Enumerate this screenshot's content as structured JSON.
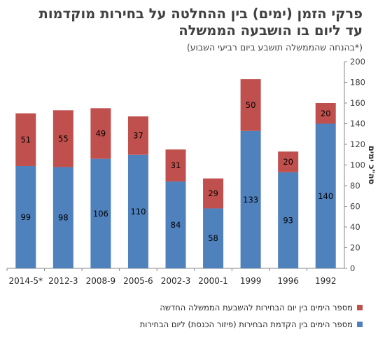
{
  "title_line1": "פרקי הזמן (ימים) בין ההחלטה על בחירות מוקדמות",
  "title_line2": "עד ליום בו הושבעה הממשלה",
  "subtitle": "(*בהנחה שהממשלה תושבע ביום רביעי השבוע)",
  "colors": {
    "red": "#c0504d",
    "blue": "#4f81bd",
    "axis": "#888888"
  },
  "chart_data": {
    "type": "bar",
    "stacked": true,
    "categories": [
      "2014-5*",
      "2012-3",
      "2008-9",
      "2005-6",
      "2002-3",
      "2000-1",
      "1999",
      "1996",
      "1992"
    ],
    "series": [
      {
        "name": "מספר הימים בין הקדמת הבחירות (פיזור הכנסת) ליום הבחירות",
        "color": "#4f81bd",
        "values": [
          99,
          98,
          106,
          110,
          84,
          58,
          133,
          93,
          140
        ]
      },
      {
        "name": "מספר הימים בין יום הבחירות להשבעת הממשלה החדשה",
        "color": "#c0504d",
        "values": [
          51,
          55,
          49,
          37,
          31,
          29,
          50,
          20,
          20
        ]
      }
    ],
    "ylabel": "סה\"כ ימים",
    "ylim": [
      0,
      200
    ],
    "yticks": [
      "0",
      "20",
      "40",
      "60",
      "80",
      "100",
      "120",
      "140",
      "160",
      "180",
      "200"
    ],
    "grid": false,
    "legend_position": "bottom"
  }
}
